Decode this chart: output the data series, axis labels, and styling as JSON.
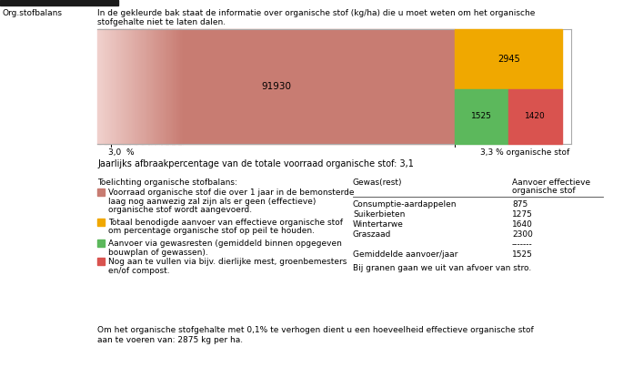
{
  "title_left": "Org.stofbalans",
  "title_bar_line1": "In de gekleurde bak staat de informatie over organische stof (kg/ha) die u moet weten om het organische",
  "title_bar_line2": "stofgehalte niet te laten dalen.",
  "bar_main_value": "91930",
  "bar_main_color": "#c87c72",
  "bar_main_fade_color": "#f0d0cc",
  "bar_orange_value": "2945",
  "bar_orange_color": "#f0a800",
  "bar_green_value": "1525",
  "bar_green_color": "#5cb85c",
  "bar_red_value": "1420",
  "bar_red_color": "#d9534f",
  "x_label_left": "3,0  %",
  "x_label_right": "3,3 % organische stof",
  "breakdown_text": "Jaarlijks afbraakpercentage van de totale voorraad organische stof: 3,1",
  "legend_title": "Toelichting organische stofbalans:",
  "legend_items": [
    {
      "color": "#c87c72",
      "text1": "Voorraad organische stof die over 1 jaar in de bemonsterde",
      "text2": "laag nog aanwezig zal zijn als er geen (effectieve)",
      "text3": "organische stof wordt aangevoerd.",
      "text4": ""
    },
    {
      "color": "#f0a800",
      "text1": "Totaal benodigde aanvoer van effectieve organische stof",
      "text2": "om percentage organische stof op peil te houden.",
      "text3": "",
      "text4": ""
    },
    {
      "color": "#5cb85c",
      "text1": "Aanvoer via gewasresten (gemiddeld binnen opgegeven",
      "text2": "bouwplan of gewassen).",
      "text3": "",
      "text4": ""
    },
    {
      "color": "#d9534f",
      "text1": "Nog aan te vullen via bijv. dierlijke mest, groenbemesters",
      "text2": "en/of compost.",
      "text3": "",
      "text4": ""
    }
  ],
  "table_header_col1": "Gewas(rest)",
  "table_header_col2a": "Aanvoer effectieve",
  "table_header_col2b": "organische stof",
  "table_rows": [
    {
      "crop": "Consumptie-aardappelen",
      "value": "875"
    },
    {
      "crop": "Suikerbieten",
      "value": "1275"
    },
    {
      "crop": "Wintertarwe",
      "value": "1640"
    },
    {
      "crop": "Graszaad",
      "value": "2300"
    }
  ],
  "table_avg_label": "Gemiddelde aanvoer/jaar",
  "table_avg_value": "1525",
  "table_sep": "-------",
  "table_note": "Bij granen gaan we uit van afvoer van stro.",
  "bottom_text1": "Om het organische stofgehalte met 0,1% te verhogen dient u een hoeveelheid effectieve organische stof",
  "bottom_text2": "aan te voeren van: 2875 kg per ha.",
  "header_bar_color": "#1a1a1a",
  "bg_color": "#ffffff"
}
